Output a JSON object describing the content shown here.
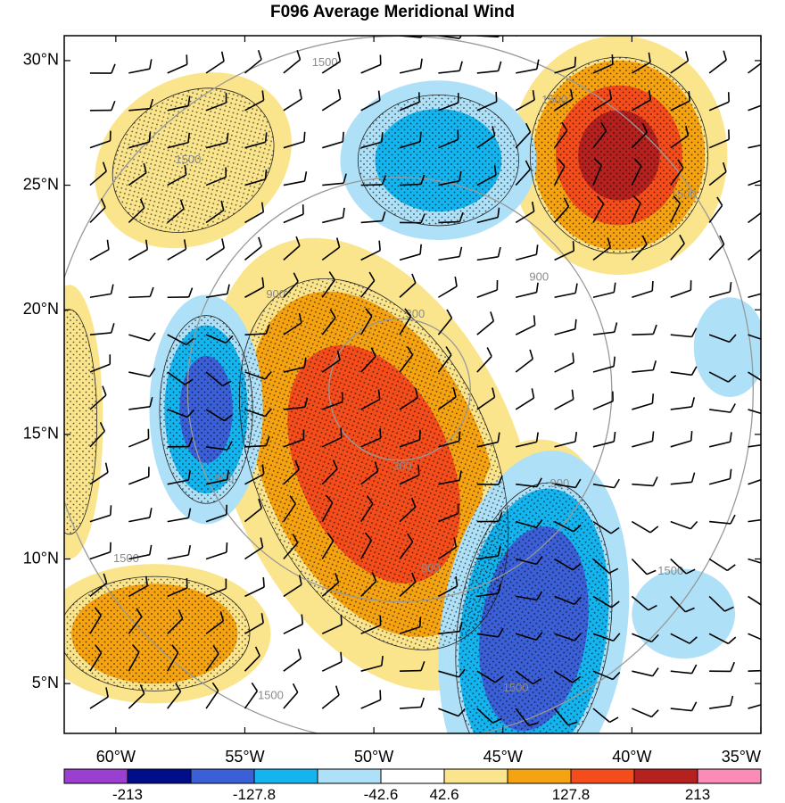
{
  "chart_data": {
    "type": "heatmap",
    "title": "F096 Average Meridional Wind",
    "xlabel": "",
    "ylabel": "",
    "xlim": [
      -62,
      -35
    ],
    "ylim": [
      3,
      31
    ],
    "x_ticks": [
      {
        "value": -60,
        "label": "60°W"
      },
      {
        "value": -55,
        "label": "55°W"
      },
      {
        "value": -50,
        "label": "50°W"
      },
      {
        "value": -45,
        "label": "45°W"
      },
      {
        "value": -40,
        "label": "40°W"
      },
      {
        "value": -35,
        "label": "35°W"
      }
    ],
    "y_ticks": [
      {
        "value": 5,
        "label": "5°N"
      },
      {
        "value": 10,
        "label": "10°N"
      },
      {
        "value": 15,
        "label": "15°N"
      },
      {
        "value": 20,
        "label": "20°N"
      },
      {
        "value": 25,
        "label": "25°N"
      },
      {
        "value": 30,
        "label": "30°N"
      }
    ],
    "colorbar": {
      "colors": [
        "#9a3fd0",
        "#000e8a",
        "#3b5fd6",
        "#14b4ef",
        "#aee0f8",
        "#ffffff",
        "#fbe58c",
        "#f6a311",
        "#f44c1b",
        "#b5211f",
        "#fd8bb7"
      ],
      "boundaries": [
        -255.6,
        -213,
        -170.4,
        -127.8,
        -85.2,
        -42.6,
        42.6,
        85.2,
        127.8,
        170.4,
        213,
        255.6
      ],
      "labeled_ticks": [
        "-213",
        "-127.8",
        "-42.6",
        "42.6",
        "127.8",
        "213"
      ],
      "labeled_boundary_index": [
        1,
        3,
        5,
        6,
        8,
        10
      ]
    },
    "range_rings": {
      "center": {
        "lon": -49.0,
        "lat": 16.8
      },
      "values": [
        300,
        900,
        1500
      ],
      "ring_labels": [
        {
          "text": "300",
          "lon": -48.4,
          "lat": 19.8
        },
        {
          "text": "300",
          "lon": -48.9,
          "lat": 13.7
        },
        {
          "text": "900",
          "lon": -53.8,
          "lat": 20.6
        },
        {
          "text": "900",
          "lon": -43.6,
          "lat": 21.3
        },
        {
          "text": "900",
          "lon": -55.8,
          "lat": 13.2
        },
        {
          "text": "900",
          "lon": -42.8,
          "lat": 13.0
        },
        {
          "text": "900",
          "lon": -47.8,
          "lat": 9.6
        },
        {
          "text": "1500",
          "lon": -51.9,
          "lat": 29.9
        },
        {
          "text": "1500",
          "lon": -43.0,
          "lat": 28.4
        },
        {
          "text": "1500",
          "lon": -57.2,
          "lat": 26.0
        },
        {
          "text": "1500",
          "lon": -38.0,
          "lat": 24.6
        },
        {
          "text": "1500",
          "lon": -59.6,
          "lat": 10.0
        },
        {
          "text": "1500",
          "lon": -38.5,
          "lat": 9.5
        },
        {
          "text": "1500",
          "lon": -44.5,
          "lat": 4.8
        },
        {
          "text": "1500",
          "lon": -54.0,
          "lat": 4.5
        }
      ]
    },
    "fields": [
      {
        "value": 150,
        "lon": -50.0,
        "lat": 13.8,
        "rx": 5.6,
        "ry": 9.6,
        "rot": -24
      },
      {
        "value": 80,
        "lon": -57.0,
        "lat": 26.0,
        "rx": 4.0,
        "ry": 3.3,
        "rot": -30
      },
      {
        "value": 175,
        "lon": -40.5,
        "lat": 26.2,
        "rx": 4.2,
        "ry": 4.8,
        "rot": 0
      },
      {
        "value": 120,
        "lon": -58.5,
        "lat": 7.0,
        "rx": 4.5,
        "ry": 2.8,
        "rot": 0
      },
      {
        "value": 80,
        "lon": -61.8,
        "lat": 15.5,
        "rx": 1.3,
        "ry": 5.5,
        "rot": 0
      },
      {
        "value": 60,
        "lon": -43.6,
        "lat": 12.5,
        "rx": 2.2,
        "ry": 2.3,
        "rot": 0
      },
      {
        "value": -130,
        "lon": -56.5,
        "lat": 16.0,
        "rx": 2.2,
        "ry": 4.6,
        "rot": 0
      },
      {
        "value": -170,
        "lon": -43.8,
        "lat": 7.2,
        "rx": 3.6,
        "ry": 7.2,
        "rot": 8
      },
      {
        "value": -90,
        "lon": -47.5,
        "lat": 26.0,
        "rx": 3.8,
        "ry": 3.2,
        "rot": 0
      },
      {
        "value": -60,
        "lon": -36.2,
        "lat": 18.5,
        "rx": 1.4,
        "ry": 2.0,
        "rot": 0
      },
      {
        "value": -60,
        "lon": -38.0,
        "lat": 7.8,
        "rx": 2.0,
        "ry": 1.8,
        "rot": 0
      }
    ],
    "wind_barbs": {
      "lon_start": -61.0,
      "lon_step": 1.5,
      "lat_start": 4.0,
      "lat_step": 1.5
    },
    "stippling": "significance dots over |v| > 42.6"
  }
}
